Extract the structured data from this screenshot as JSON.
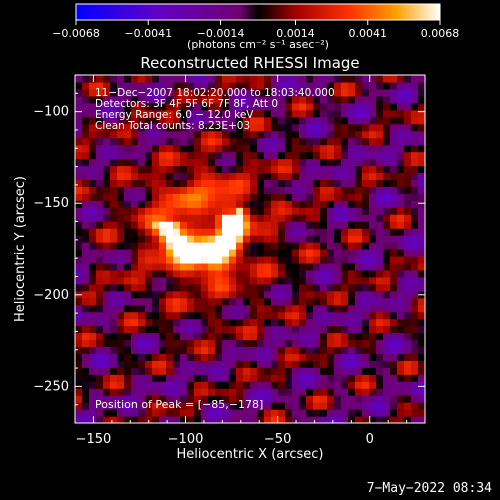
{
  "chart_data": {
    "type": "heatmap",
    "title": "Reconstructed RHESSI Image",
    "xlabel": "Heliocentric X (arcsec)",
    "ylabel": "Heliocentric Y (arcsec)",
    "xlim": [
      -160,
      30
    ],
    "ylim": [
      -270,
      -80
    ],
    "x_ticks": [
      -150,
      -100,
      -50,
      0
    ],
    "x_tick_labels": [
      "−150",
      "−100",
      "−50",
      "0"
    ],
    "y_ticks": [
      -100,
      -150,
      -200,
      -250
    ],
    "y_tick_labels": [
      "−100",
      "−150",
      "−200",
      "−250"
    ],
    "colorbar": {
      "min": -0.0068,
      "max": 0.0068,
      "ticks": [
        -0.0068,
        -0.0041,
        -0.0014,
        0.0014,
        0.0041,
        0.0068
      ],
      "tick_labels": [
        "−0.0068",
        "−0.0041",
        "−0.0014",
        "0.0014",
        "0.0041",
        "0.0068"
      ],
      "units_label": "(photons cm⁻² s⁻¹ asec⁻²)"
    },
    "annotations": [
      "11−Dec−2007 18:02:20.000 to 18:03:40.000",
      "Detectors: 3F 4F 5F 6F 7F 8F, Att 0",
      "Energy Range: 6.0 − 12.0 keV",
      "Clean     Total counts: 8.23E+03"
    ],
    "peak_label": "Position of Peak = [−85,−178]",
    "peak": {
      "x": -85,
      "y": -178
    },
    "source": {
      "type": "arc",
      "center_x": -92,
      "center_y": -160,
      "radius": 18
    },
    "grid": false,
    "legend": "none"
  },
  "footer": {
    "date_stamp": "7−May−2022 08:34"
  }
}
